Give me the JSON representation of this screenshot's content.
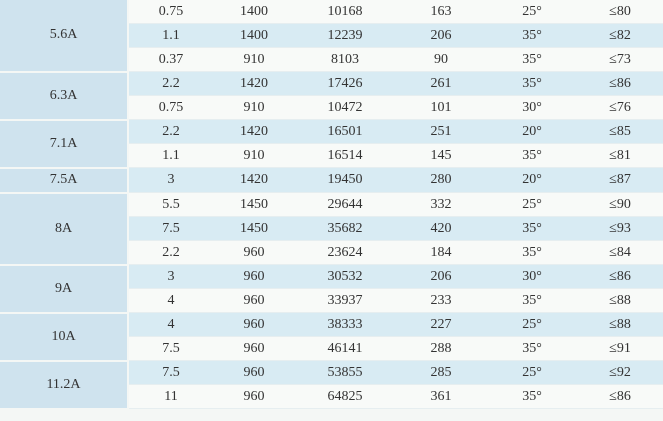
{
  "table": {
    "groups": [
      {
        "model": "5.6A",
        "rows": [
          [
            "0.75",
            "1400",
            "10168",
            "163",
            "25°",
            "≤80"
          ],
          [
            "1.1",
            "1400",
            "12239",
            "206",
            "35°",
            "≤82"
          ],
          [
            "0.37",
            "910",
            "8103",
            "90",
            "35°",
            "≤73"
          ]
        ]
      },
      {
        "model": "6.3A",
        "rows": [
          [
            "2.2",
            "1420",
            "17426",
            "261",
            "35°",
            "≤86"
          ],
          [
            "0.75",
            "910",
            "10472",
            "101",
            "30°",
            "≤76"
          ]
        ]
      },
      {
        "model": "7.1A",
        "rows": [
          [
            "2.2",
            "1420",
            "16501",
            "251",
            "20°",
            "≤85"
          ],
          [
            "1.1",
            "910",
            "16514",
            "145",
            "35°",
            "≤81"
          ]
        ]
      },
      {
        "model": "7.5A",
        "rows": [
          [
            "3",
            "1420",
            "19450",
            "280",
            "20°",
            "≤87"
          ]
        ]
      },
      {
        "model": "8A",
        "rows": [
          [
            "5.5",
            "1450",
            "29644",
            "332",
            "25°",
            "≤90"
          ],
          [
            "7.5",
            "1450",
            "35682",
            "420",
            "35°",
            "≤93"
          ],
          [
            "2.2",
            "960",
            "23624",
            "184",
            "35°",
            "≤84"
          ]
        ]
      },
      {
        "model": "9A",
        "rows": [
          [
            "3",
            "960",
            "30532",
            "206",
            "30°",
            "≤86"
          ],
          [
            "4",
            "960",
            "33937",
            "233",
            "35°",
            "≤88"
          ]
        ]
      },
      {
        "model": "10A",
        "rows": [
          [
            "4",
            "960",
            "38333",
            "227",
            "25°",
            "≤88"
          ],
          [
            "7.5",
            "960",
            "46141",
            "288",
            "35°",
            "≤91"
          ]
        ]
      },
      {
        "model": "11.2A",
        "rows": [
          [
            "7.5",
            "960",
            "53855",
            "285",
            "25°",
            "≤92"
          ],
          [
            "11",
            "960",
            "64825",
            "361",
            "35°",
            "≤86"
          ]
        ]
      }
    ]
  }
}
